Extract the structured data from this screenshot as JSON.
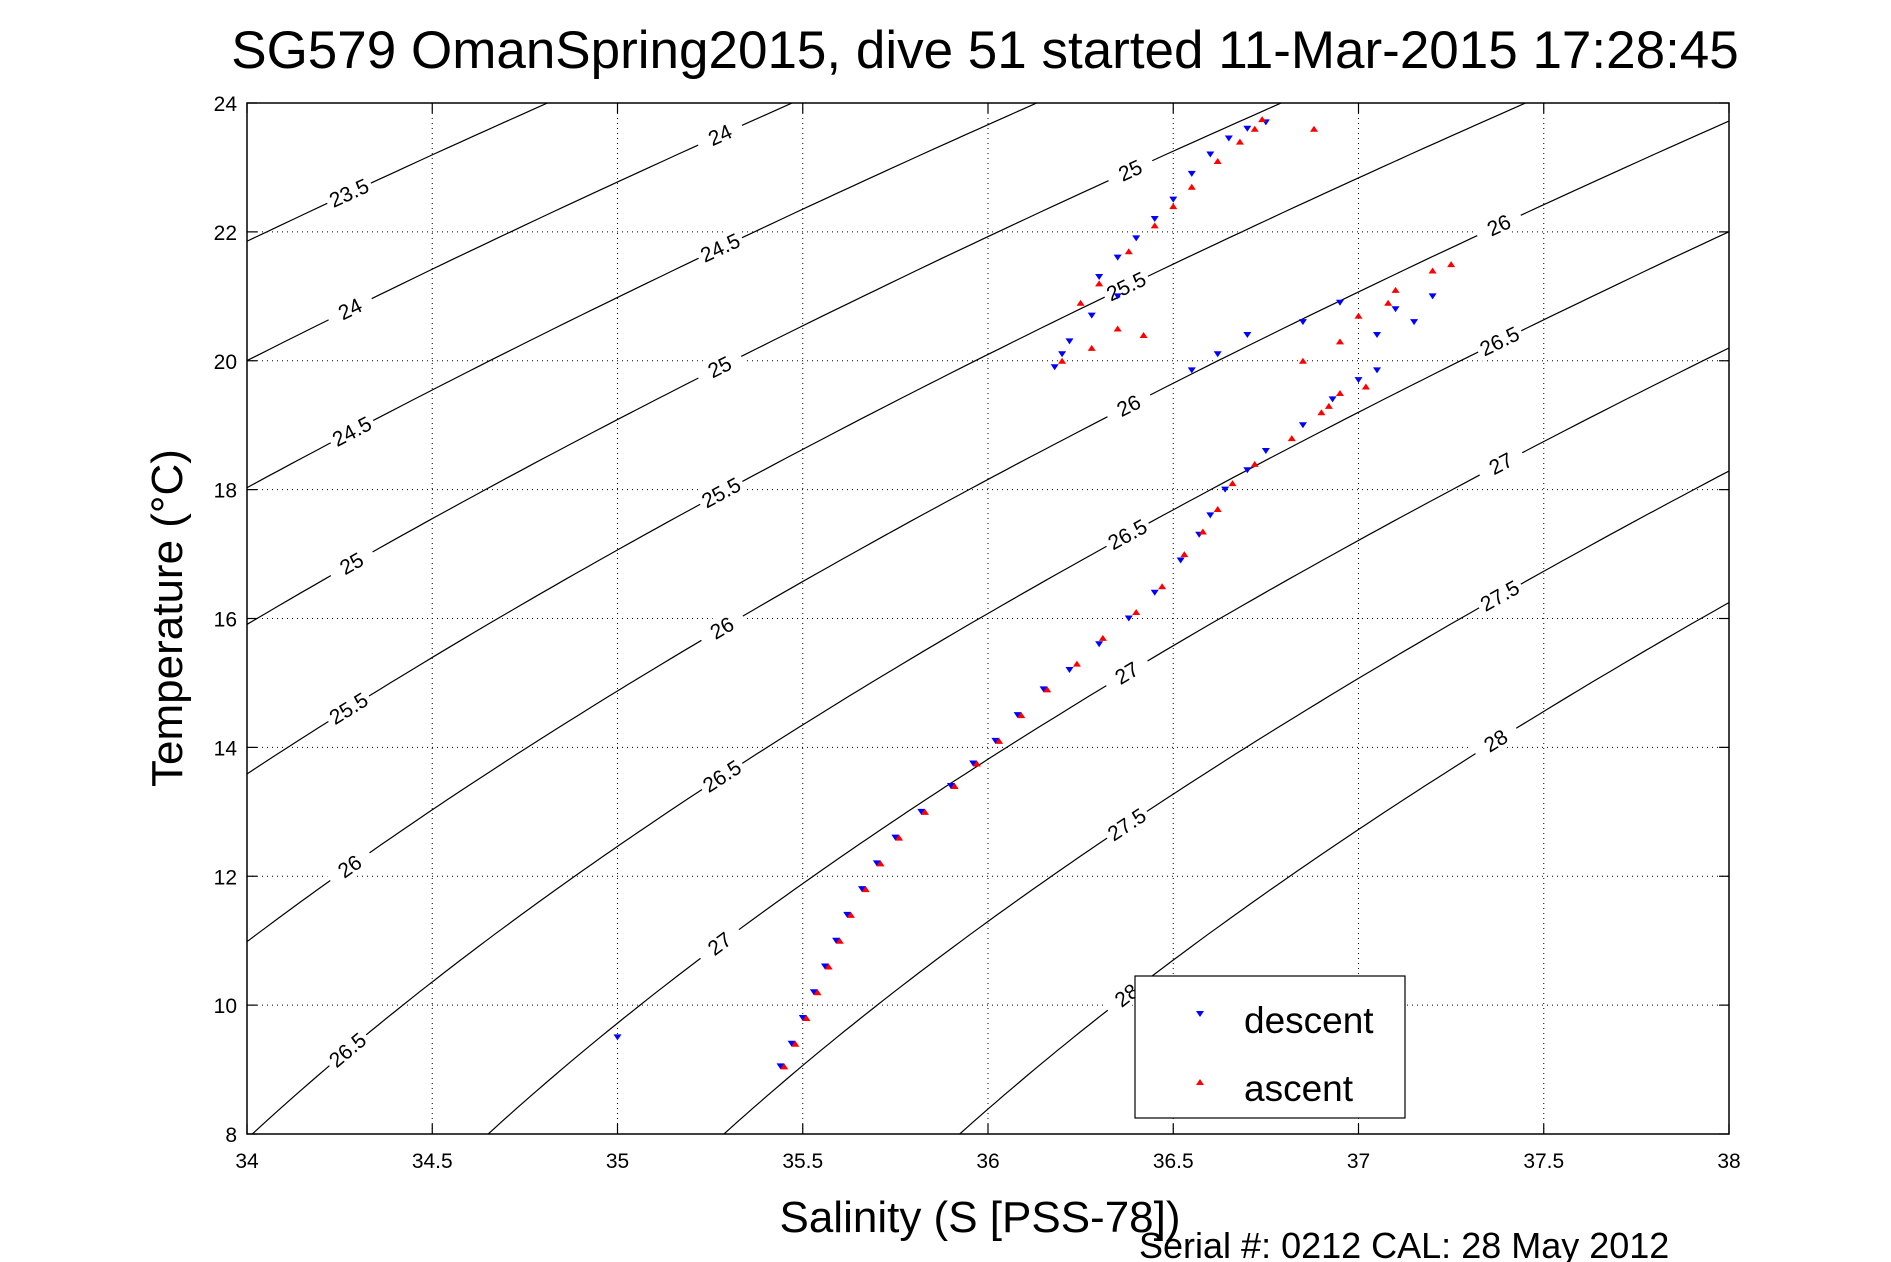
{
  "chart_data": {
    "type": "scatter",
    "title": "SG579 OmanSpring2015, dive 51 started 11-Mar-2015 17:28:45",
    "xlabel": "Salinity (S [PSS-78])",
    "ylabel": "Temperature (°C)",
    "xlim": [
      34,
      38
    ],
    "ylim": [
      8,
      24
    ],
    "x_ticks": [
      "34",
      "34.5",
      "35",
      "35.5",
      "36",
      "36.5",
      "37",
      "37.5",
      "38"
    ],
    "y_ticks": [
      "8",
      "10",
      "12",
      "14",
      "16",
      "18",
      "20",
      "22",
      "24"
    ],
    "grid": "dotted",
    "legend_position": "bottom-right",
    "footer": "Serial #: 0212  CAL: 28 May 2012",
    "colors": {
      "descent": "#0000ff",
      "ascent": "#ff0000",
      "contour": "#000000"
    },
    "density_contours": [
      {
        "sigma": 23.5,
        "label": "23.5"
      },
      {
        "sigma": 24,
        "label": "24"
      },
      {
        "sigma": 24.5,
        "label": "24.5"
      },
      {
        "sigma": 25,
        "label": "25"
      },
      {
        "sigma": 25.5,
        "label": "25.5"
      },
      {
        "sigma": 26,
        "label": "26"
      },
      {
        "sigma": 26.5,
        "label": "26.5"
      },
      {
        "sigma": 27,
        "label": "27"
      },
      {
        "sigma": 27.5,
        "label": "27.5"
      },
      {
        "sigma": 28,
        "label": "28"
      }
    ],
    "series": [
      {
        "name": "descent",
        "marker": "triangle-down",
        "color": "#0000ff",
        "points": [
          [
            35.44,
            9.05
          ],
          [
            35.47,
            9.4
          ],
          [
            35.5,
            9.8
          ],
          [
            35.53,
            10.2
          ],
          [
            35.56,
            10.6
          ],
          [
            35.59,
            11.0
          ],
          [
            35.62,
            11.4
          ],
          [
            35.66,
            11.8
          ],
          [
            35.7,
            12.2
          ],
          [
            35.75,
            12.6
          ],
          [
            35.82,
            13.0
          ],
          [
            35.9,
            13.4
          ],
          [
            35.96,
            13.75
          ],
          [
            36.02,
            14.1
          ],
          [
            36.08,
            14.5
          ],
          [
            36.15,
            14.9
          ],
          [
            36.22,
            15.2
          ],
          [
            36.3,
            15.6
          ],
          [
            36.38,
            16.0
          ],
          [
            36.45,
            16.4
          ],
          [
            36.52,
            16.9
          ],
          [
            36.57,
            17.3
          ],
          [
            36.6,
            17.6
          ],
          [
            36.64,
            18.0
          ],
          [
            36.7,
            18.3
          ],
          [
            36.75,
            18.6
          ],
          [
            36.85,
            19.0
          ],
          [
            36.93,
            19.4
          ],
          [
            37.0,
            19.7
          ],
          [
            37.05,
            19.85
          ],
          [
            36.55,
            19.85
          ],
          [
            36.62,
            20.1
          ],
          [
            36.7,
            20.4
          ],
          [
            36.85,
            20.6
          ],
          [
            36.95,
            20.9
          ],
          [
            37.05,
            20.4
          ],
          [
            37.15,
            20.6
          ],
          [
            37.2,
            21.0
          ],
          [
            37.1,
            20.8
          ],
          [
            36.18,
            19.9
          ],
          [
            36.2,
            20.1
          ],
          [
            36.22,
            20.3
          ],
          [
            36.28,
            20.7
          ],
          [
            36.35,
            21.0
          ],
          [
            36.3,
            21.3
          ],
          [
            36.35,
            21.6
          ],
          [
            36.4,
            21.9
          ],
          [
            36.45,
            22.2
          ],
          [
            36.5,
            22.5
          ],
          [
            36.55,
            22.9
          ],
          [
            36.6,
            23.2
          ],
          [
            36.65,
            23.45
          ],
          [
            36.7,
            23.6
          ],
          [
            36.75,
            23.7
          ],
          [
            35.0,
            9.5
          ]
        ]
      },
      {
        "name": "ascent",
        "marker": "triangle-up",
        "color": "#ff0000",
        "points": [
          [
            35.45,
            9.05
          ],
          [
            35.48,
            9.4
          ],
          [
            35.51,
            9.8
          ],
          [
            35.54,
            10.2
          ],
          [
            35.57,
            10.6
          ],
          [
            35.6,
            11.0
          ],
          [
            35.63,
            11.4
          ],
          [
            35.67,
            11.8
          ],
          [
            35.71,
            12.2
          ],
          [
            35.76,
            12.6
          ],
          [
            35.83,
            13.0
          ],
          [
            35.91,
            13.4
          ],
          [
            35.97,
            13.75
          ],
          [
            36.03,
            14.1
          ],
          [
            36.09,
            14.5
          ],
          [
            36.16,
            14.9
          ],
          [
            36.24,
            15.3
          ],
          [
            36.31,
            15.7
          ],
          [
            36.4,
            16.1
          ],
          [
            36.47,
            16.5
          ],
          [
            36.53,
            17.0
          ],
          [
            36.58,
            17.35
          ],
          [
            36.62,
            17.7
          ],
          [
            36.66,
            18.1
          ],
          [
            36.72,
            18.4
          ],
          [
            36.82,
            18.8
          ],
          [
            36.9,
            19.2
          ],
          [
            36.95,
            19.5
          ],
          [
            37.02,
            19.6
          ],
          [
            36.92,
            19.3
          ],
          [
            36.85,
            20.0
          ],
          [
            36.95,
            20.3
          ],
          [
            37.0,
            20.7
          ],
          [
            37.1,
            21.1
          ],
          [
            37.2,
            21.4
          ],
          [
            37.25,
            21.5
          ],
          [
            37.08,
            20.9
          ],
          [
            36.2,
            20.0
          ],
          [
            36.28,
            20.2
          ],
          [
            36.35,
            20.5
          ],
          [
            36.42,
            20.4
          ],
          [
            36.25,
            20.9
          ],
          [
            36.3,
            21.2
          ],
          [
            36.38,
            21.7
          ],
          [
            36.45,
            22.1
          ],
          [
            36.5,
            22.4
          ],
          [
            36.55,
            22.7
          ],
          [
            36.62,
            23.1
          ],
          [
            36.68,
            23.4
          ],
          [
            36.72,
            23.6
          ],
          [
            36.74,
            23.75
          ],
          [
            36.88,
            23.6
          ]
        ]
      }
    ]
  }
}
